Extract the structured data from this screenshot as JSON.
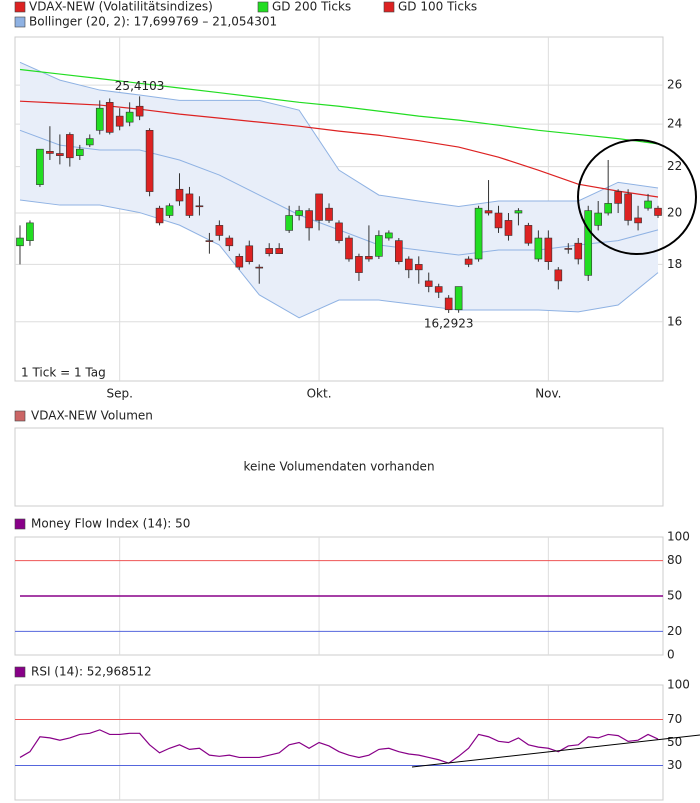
{
  "chart_data": [
    {
      "type": "candlestick",
      "categories": [
        null,
        null,
        null,
        null,
        null,
        null,
        null,
        null,
        null,
        null,
        "Sep.",
        null,
        null,
        null,
        null,
        null,
        null,
        null,
        null,
        null,
        null,
        null,
        null,
        null,
        null,
        null,
        null,
        null,
        null,
        null,
        "Okt.",
        null,
        null,
        null,
        null,
        null,
        null,
        null,
        null,
        null,
        null,
        null,
        null,
        null,
        null,
        null,
        null,
        null,
        null,
        null,
        null,
        null,
        null,
        "Nov.",
        null,
        null,
        null,
        null,
        null,
        null,
        null,
        null,
        null,
        null,
        null
      ],
      "candles": {
        "name": "VDAX-NEW (Volatilitätsindizes)",
        "color": "#dd2222",
        "up_color": "#22dd22",
        "down_color": "#dd2222",
        "open": [
          18.7,
          18.9,
          21.2,
          22.7,
          22.6,
          23.5,
          22.5,
          23.0,
          23.7,
          25.1,
          24.4,
          24.1,
          24.9,
          23.7,
          20.2,
          19.9,
          21.0,
          20.8,
          20.3,
          18.9,
          19.5,
          19.0,
          18.3,
          18.7,
          17.9,
          18.6,
          18.6,
          19.3,
          19.9,
          20.1,
          20.8,
          20.2,
          19.6,
          19.0,
          18.3,
          18.3,
          18.3,
          19.0,
          18.9,
          18.2,
          18.0,
          17.4,
          17.2,
          16.8,
          16.4,
          18.2,
          18.2,
          20.1,
          20.0,
          19.7,
          20.0,
          19.5,
          18.2,
          19.0,
          17.8,
          18.6,
          18.8,
          17.6,
          19.5,
          20.0,
          20.9,
          20.8,
          19.8,
          20.2,
          20.2
        ],
        "high": [
          19.5,
          19.7,
          22.8,
          23.9,
          23.5,
          23.6,
          23.0,
          23.5,
          25.2,
          25.3,
          24.8,
          25.1,
          25.4103,
          23.8,
          20.3,
          20.4,
          21.7,
          21.1,
          20.7,
          19.2,
          19.7,
          19.1,
          18.4,
          18.9,
          18.0,
          18.8,
          18.8,
          20.3,
          20.3,
          20.2,
          20.8,
          20.4,
          19.7,
          19.1,
          18.4,
          19.5,
          19.3,
          19.3,
          19.0,
          18.3,
          18.3,
          17.7,
          17.3,
          16.9,
          17.2,
          18.3,
          20.3,
          21.4,
          20.3,
          20.0,
          20.2,
          19.6,
          19.3,
          19.3,
          17.9,
          18.8,
          19.0,
          20.3,
          20.5,
          22.3,
          21.0,
          21.0,
          20.3,
          20.8,
          20.3
        ],
        "low": [
          18.0,
          18.7,
          21.1,
          22.3,
          22.1,
          22.0,
          22.3,
          22.9,
          23.5,
          23.5,
          23.7,
          23.9,
          24.2,
          20.7,
          19.5,
          19.8,
          20.3,
          19.8,
          19.9,
          18.4,
          18.9,
          18.5,
          17.8,
          18.0,
          17.3,
          18.3,
          18.4,
          19.2,
          19.7,
          18.9,
          19.3,
          19.6,
          18.8,
          18.1,
          17.4,
          18.1,
          18.2,
          18.9,
          18.0,
          17.5,
          17.3,
          17.0,
          16.8,
          16.2923,
          16.3,
          17.9,
          18.1,
          19.9,
          19.2,
          18.9,
          19.5,
          18.7,
          18.1,
          17.8,
          17.1,
          18.4,
          18.0,
          17.4,
          19.3,
          19.9,
          20.0,
          19.5,
          19.3,
          20.1,
          19.8
        ],
        "close": [
          19.0,
          19.6,
          22.8,
          22.6,
          22.5,
          22.4,
          22.8,
          23.3,
          24.8,
          23.6,
          23.9,
          24.6,
          24.4,
          20.9,
          19.6,
          20.3,
          20.5,
          19.9,
          20.3,
          18.9,
          19.1,
          18.7,
          17.9,
          18.1,
          17.9,
          18.4,
          18.4,
          19.9,
          20.1,
          19.4,
          19.7,
          19.7,
          18.9,
          18.2,
          17.7,
          18.2,
          19.1,
          19.2,
          18.1,
          17.8,
          17.8,
          17.2,
          17.0,
          16.4,
          17.2,
          18.0,
          20.2,
          20.0,
          19.4,
          19.1,
          20.1,
          18.8,
          19.0,
          18.1,
          17.4,
          18.6,
          18.2,
          20.1,
          20.0,
          20.4,
          20.4,
          19.7,
          19.6,
          20.5,
          19.9
        ]
      },
      "lines": [
        {
          "name": "GD 200 Ticks",
          "color": "#22dd22",
          "x": [
            0,
            4,
            8,
            12,
            16,
            20,
            24,
            28,
            32,
            36,
            40,
            44,
            48,
            52,
            56,
            60,
            64
          ],
          "values": [
            26.85,
            26.6,
            26.35,
            26.1,
            25.85,
            25.6,
            25.35,
            25.1,
            24.9,
            24.65,
            24.4,
            24.2,
            23.95,
            23.7,
            23.5,
            23.3,
            23.05
          ]
        },
        {
          "name": "GD 100 Ticks",
          "color": "#dd2222",
          "x": [
            0,
            4,
            8,
            12,
            16,
            20,
            24,
            28,
            32,
            36,
            40,
            44,
            48,
            52,
            56,
            60,
            64
          ],
          "values": [
            25.16,
            25.06,
            24.96,
            24.75,
            24.5,
            24.3,
            24.1,
            23.9,
            23.66,
            23.46,
            23.2,
            22.9,
            22.43,
            21.84,
            21.22,
            20.92,
            20.67
          ]
        }
      ],
      "bollinger": {
        "name": "Bollinger (20, 2): 17,699769 – 21,054301",
        "color": "#8fb2e3",
        "fill": "#e8eef9",
        "x": [
          0,
          4,
          8,
          12,
          16,
          20,
          24,
          28,
          32,
          36,
          40,
          44,
          48,
          52,
          56,
          60,
          64
        ],
        "upper": [
          27.25,
          26.27,
          25.74,
          25.48,
          25.2,
          25.2,
          25.2,
          24.7,
          21.84,
          20.75,
          20.5,
          20.27,
          20.5,
          20.5,
          20.5,
          21.3,
          21.054301
        ],
        "middle": [
          23.7,
          22.99,
          22.76,
          22.76,
          22.3,
          21.62,
          20.75,
          19.92,
          19.32,
          18.73,
          18.54,
          18.35,
          18.54,
          18.54,
          18.73,
          18.9,
          19.32
        ],
        "lower": [
          20.54,
          20.33,
          20.33,
          20.02,
          19.51,
          18.73,
          16.91,
          16.13,
          16.73,
          16.73,
          16.56,
          16.39,
          16.39,
          16.39,
          16.33,
          16.56,
          17.699769
        ]
      },
      "ylim": [
        14.17,
        28.7
      ],
      "yticks": [
        16,
        18,
        20,
        22,
        24,
        26
      ],
      "log_scale": true,
      "grid": true,
      "max_label": "25,4103",
      "min_label": "16,2923",
      "note": "1 Tick = 1 Tag"
    },
    {
      "type": "volume",
      "title": "VDAX-NEW Volumen",
      "color": "#cc6666",
      "message": "keine Volumendaten vorhanden"
    },
    {
      "type": "level",
      "title": "Money Flow Index (14): 50",
      "color": "#880088",
      "level": 50,
      "ylim": [
        0,
        100
      ],
      "yticks": [
        0,
        20,
        50,
        80,
        100
      ],
      "ref_lines": [
        {
          "value": 80,
          "color": "#ee5555"
        },
        {
          "value": 20,
          "color": "#5566dd"
        }
      ]
    },
    {
      "type": "line",
      "title": "RSI (14): 52,968512",
      "color": "#880088",
      "values": [
        37,
        42,
        55,
        54,
        52,
        54,
        57,
        58,
        61,
        57,
        57,
        58,
        58,
        48,
        41,
        45,
        48,
        44,
        45,
        39,
        38,
        39,
        37,
        37,
        37,
        39,
        41,
        48,
        50,
        45,
        50,
        47,
        42,
        39,
        37,
        39,
        44,
        45,
        42,
        40,
        39,
        37,
        35,
        32,
        38,
        45,
        57,
        55,
        51,
        50,
        54,
        48,
        46,
        45,
        42,
        47,
        48,
        55,
        54,
        57,
        56,
        51,
        52,
        57,
        52.968512
      ],
      "ylim": [
        0,
        100
      ],
      "yticks": [
        30,
        50,
        70,
        100
      ],
      "ref_lines": [
        {
          "value": 70,
          "color": "#ee5555"
        },
        {
          "value": 30,
          "color": "#5566dd"
        }
      ]
    }
  ]
}
